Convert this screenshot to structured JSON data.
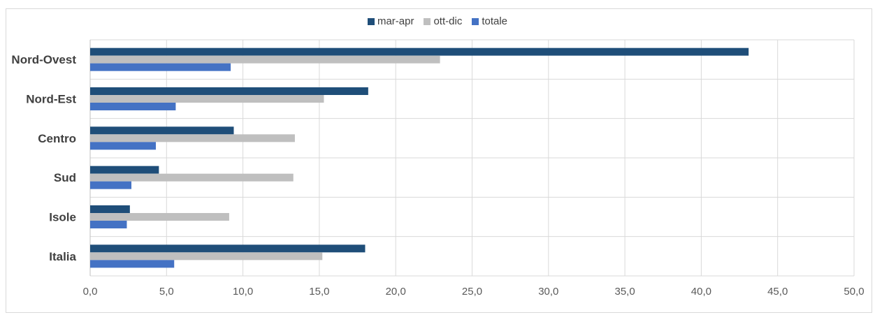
{
  "chart_data": {
    "type": "bar",
    "orientation": "horizontal",
    "categories": [
      "Nord-Ovest",
      "Nord-Est",
      "Centro",
      "Sud",
      "Isole",
      "Italia"
    ],
    "series": [
      {
        "name": "mar-apr",
        "color": "#1f4e79",
        "values": [
          43.1,
          18.2,
          9.4,
          4.5,
          2.6,
          18.0
        ]
      },
      {
        "name": "ott-dic",
        "color": "#bfbfbf",
        "values": [
          22.9,
          15.3,
          13.4,
          13.3,
          9.1,
          15.2
        ]
      },
      {
        "name": "totale",
        "color": "#4472c4",
        "values": [
          9.2,
          5.6,
          4.3,
          2.7,
          2.4,
          5.5
        ]
      }
    ],
    "xlim": [
      0,
      50
    ],
    "xticks": [
      0,
      5,
      10,
      15,
      20,
      25,
      30,
      35,
      40,
      45,
      50
    ],
    "xtick_labels": [
      "0,0",
      "5,0",
      "10,0",
      "15,0",
      "20,0",
      "25,0",
      "30,0",
      "35,0",
      "40,0",
      "45,0",
      "50,0"
    ],
    "grid": true,
    "legend_position": "top-center",
    "title": "",
    "xlabel": "",
    "ylabel": ""
  }
}
